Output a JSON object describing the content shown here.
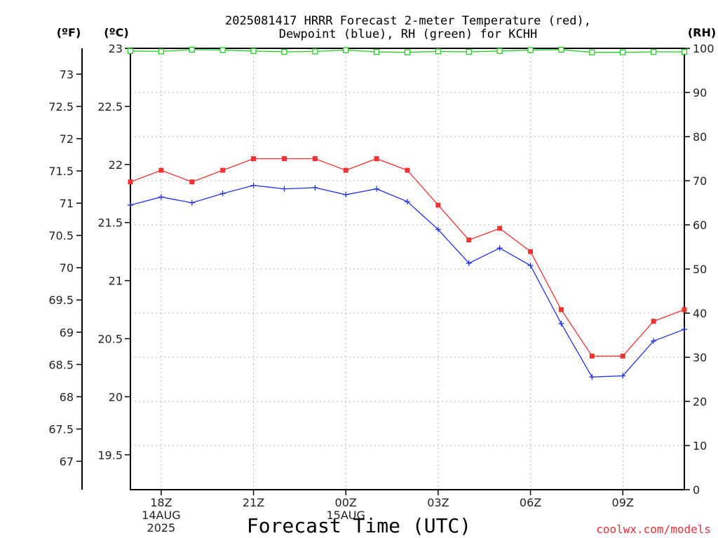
{
  "chart_data": {
    "type": "line",
    "title": "2025081417 HRRR Forecast 2-meter Temperature (red),",
    "title_line2": "Dewpoint (blue), RH (green) for KCHH",
    "units": {
      "fahrenheit": "(ºF)",
      "celsius": "(ºC)",
      "rh": "(RH)"
    },
    "xlabel": "Forecast Time (UTC)",
    "credit": "coolwx.com/models",
    "x_hours": [
      17,
      18,
      19,
      20,
      21,
      22,
      23,
      24,
      25,
      26,
      27,
      28,
      29,
      30,
      31,
      32,
      33,
      34,
      35
    ],
    "x_range": [
      17,
      35
    ],
    "x_ticks": [
      {
        "hour": 18,
        "label": "18Z",
        "date": "14AUG",
        "year": "2025"
      },
      {
        "hour": 21,
        "label": "21Z"
      },
      {
        "hour": 24,
        "label": "00Z",
        "date": "15AUG"
      },
      {
        "hour": 27,
        "label": "03Z"
      },
      {
        "hour": 30,
        "label": "06Z"
      },
      {
        "hour": 33,
        "label": "09Z"
      }
    ],
    "celsius_axis": {
      "range": [
        19.2,
        23.0
      ],
      "ticks": [
        "19.5",
        "20",
        "20.5",
        "21",
        "21.5",
        "22",
        "22.5",
        "23"
      ]
    },
    "fahrenheit_axis": {
      "range": [
        66.56,
        73.4
      ],
      "ticks": [
        "67",
        "67.5",
        "68",
        "68.5",
        "69",
        "69.5",
        "70",
        "70.5",
        "71",
        "71.5",
        "72",
        "72.5",
        "73"
      ]
    },
    "rh_axis": {
      "range": [
        0,
        100
      ],
      "ticks": [
        "0",
        "10",
        "20",
        "30",
        "40",
        "50",
        "60",
        "70",
        "80",
        "90",
        "100"
      ]
    },
    "grid": true,
    "series": [
      {
        "name": "Temperature",
        "color": "#ee3333",
        "marker": "filled-square",
        "axis": "celsius",
        "values": [
          21.85,
          21.95,
          21.85,
          21.95,
          22.05,
          22.05,
          22.05,
          21.95,
          22.05,
          21.95,
          21.65,
          21.35,
          21.45,
          21.25,
          20.75,
          20.35,
          20.35,
          20.65,
          20.75
        ]
      },
      {
        "name": "Dewpoint",
        "color": "#2233dd",
        "marker": "plus",
        "axis": "celsius",
        "values": [
          21.65,
          21.72,
          21.67,
          21.75,
          21.82,
          21.79,
          21.8,
          21.74,
          21.79,
          21.68,
          21.44,
          21.15,
          21.28,
          21.13,
          20.63,
          20.17,
          20.18,
          20.48,
          20.58
        ]
      },
      {
        "name": "RH",
        "color": "#22cc22",
        "marker": "open-square",
        "axis": "rh",
        "values": [
          99.4,
          99.3,
          99.7,
          99.6,
          99.4,
          99.2,
          99.3,
          99.6,
          99.2,
          99.1,
          99.3,
          99.2,
          99.4,
          99.6,
          99.7,
          99.1,
          99.1,
          99.2,
          99.2
        ]
      }
    ]
  }
}
